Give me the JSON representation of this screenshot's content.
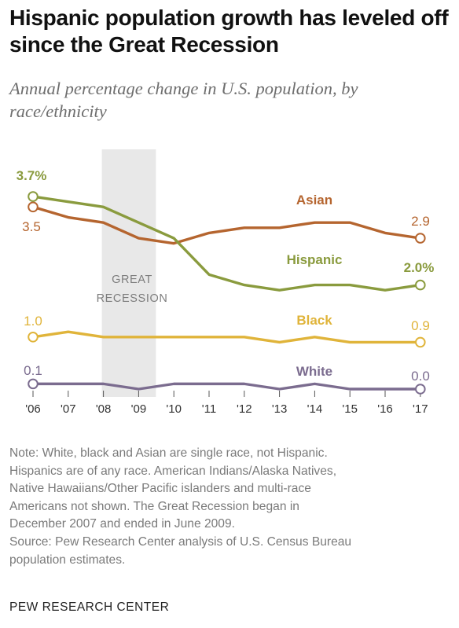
{
  "header": {
    "title": "Hispanic population growth has leveled off since the Great Recession",
    "subtitle": "Annual percentage change in U.S. population, by race/ethnicity"
  },
  "chart_data": {
    "type": "line",
    "categories": [
      "'06",
      "'07",
      "'08",
      "'09",
      "'10",
      "'11",
      "'12",
      "'13",
      "'14",
      "'15",
      "'16",
      "'17"
    ],
    "ylim": [
      0,
      4
    ],
    "grid": false,
    "shaded_region": {
      "from": "'08",
      "to": "'09",
      "label_lines": [
        "GREAT",
        "RECESSION"
      ],
      "color": "#e8e8e8"
    },
    "series": [
      {
        "name": "Asian",
        "color": "#b5652f",
        "values": [
          3.5,
          3.3,
          3.2,
          2.9,
          2.8,
          3.0,
          3.1,
          3.1,
          3.2,
          3.2,
          3.0,
          2.9
        ],
        "start_label": "3.5",
        "end_label": "2.9"
      },
      {
        "name": "Hispanic",
        "color": "#8a9b3e",
        "values": [
          3.7,
          3.6,
          3.5,
          3.2,
          2.9,
          2.2,
          2.0,
          1.9,
          2.0,
          2.0,
          1.9,
          2.0
        ],
        "start_label": "3.7%",
        "end_label": "2.0%"
      },
      {
        "name": "Black",
        "color": "#e0b43a",
        "values": [
          1.0,
          1.1,
          1.0,
          1.0,
          1.0,
          1.0,
          1.0,
          0.9,
          1.0,
          0.9,
          0.9,
          0.9
        ],
        "start_label": "1.0",
        "end_label": "0.9"
      },
      {
        "name": "White",
        "color": "#7b6c8f",
        "values": [
          0.1,
          0.1,
          0.1,
          0.0,
          0.1,
          0.1,
          0.1,
          0.0,
          0.1,
          0.0,
          0.0,
          0.0
        ],
        "start_label": "0.1",
        "end_label": "0.0"
      }
    ]
  },
  "footer": {
    "note_lines": [
      "Note: White, black and Asian are single race, not Hispanic.",
      "Hispanics are of any race. American Indians/Alaska Natives,",
      "Native Hawaiians/Other Pacific islanders and multi-race",
      "Americans not shown. The Great Recession began in",
      "December 2007 and ended in June 2009."
    ],
    "source_lines": [
      "Source: Pew Research Center analysis of U.S. Census Bureau",
      "population estimates."
    ],
    "org": "PEW RESEARCH CENTER"
  }
}
